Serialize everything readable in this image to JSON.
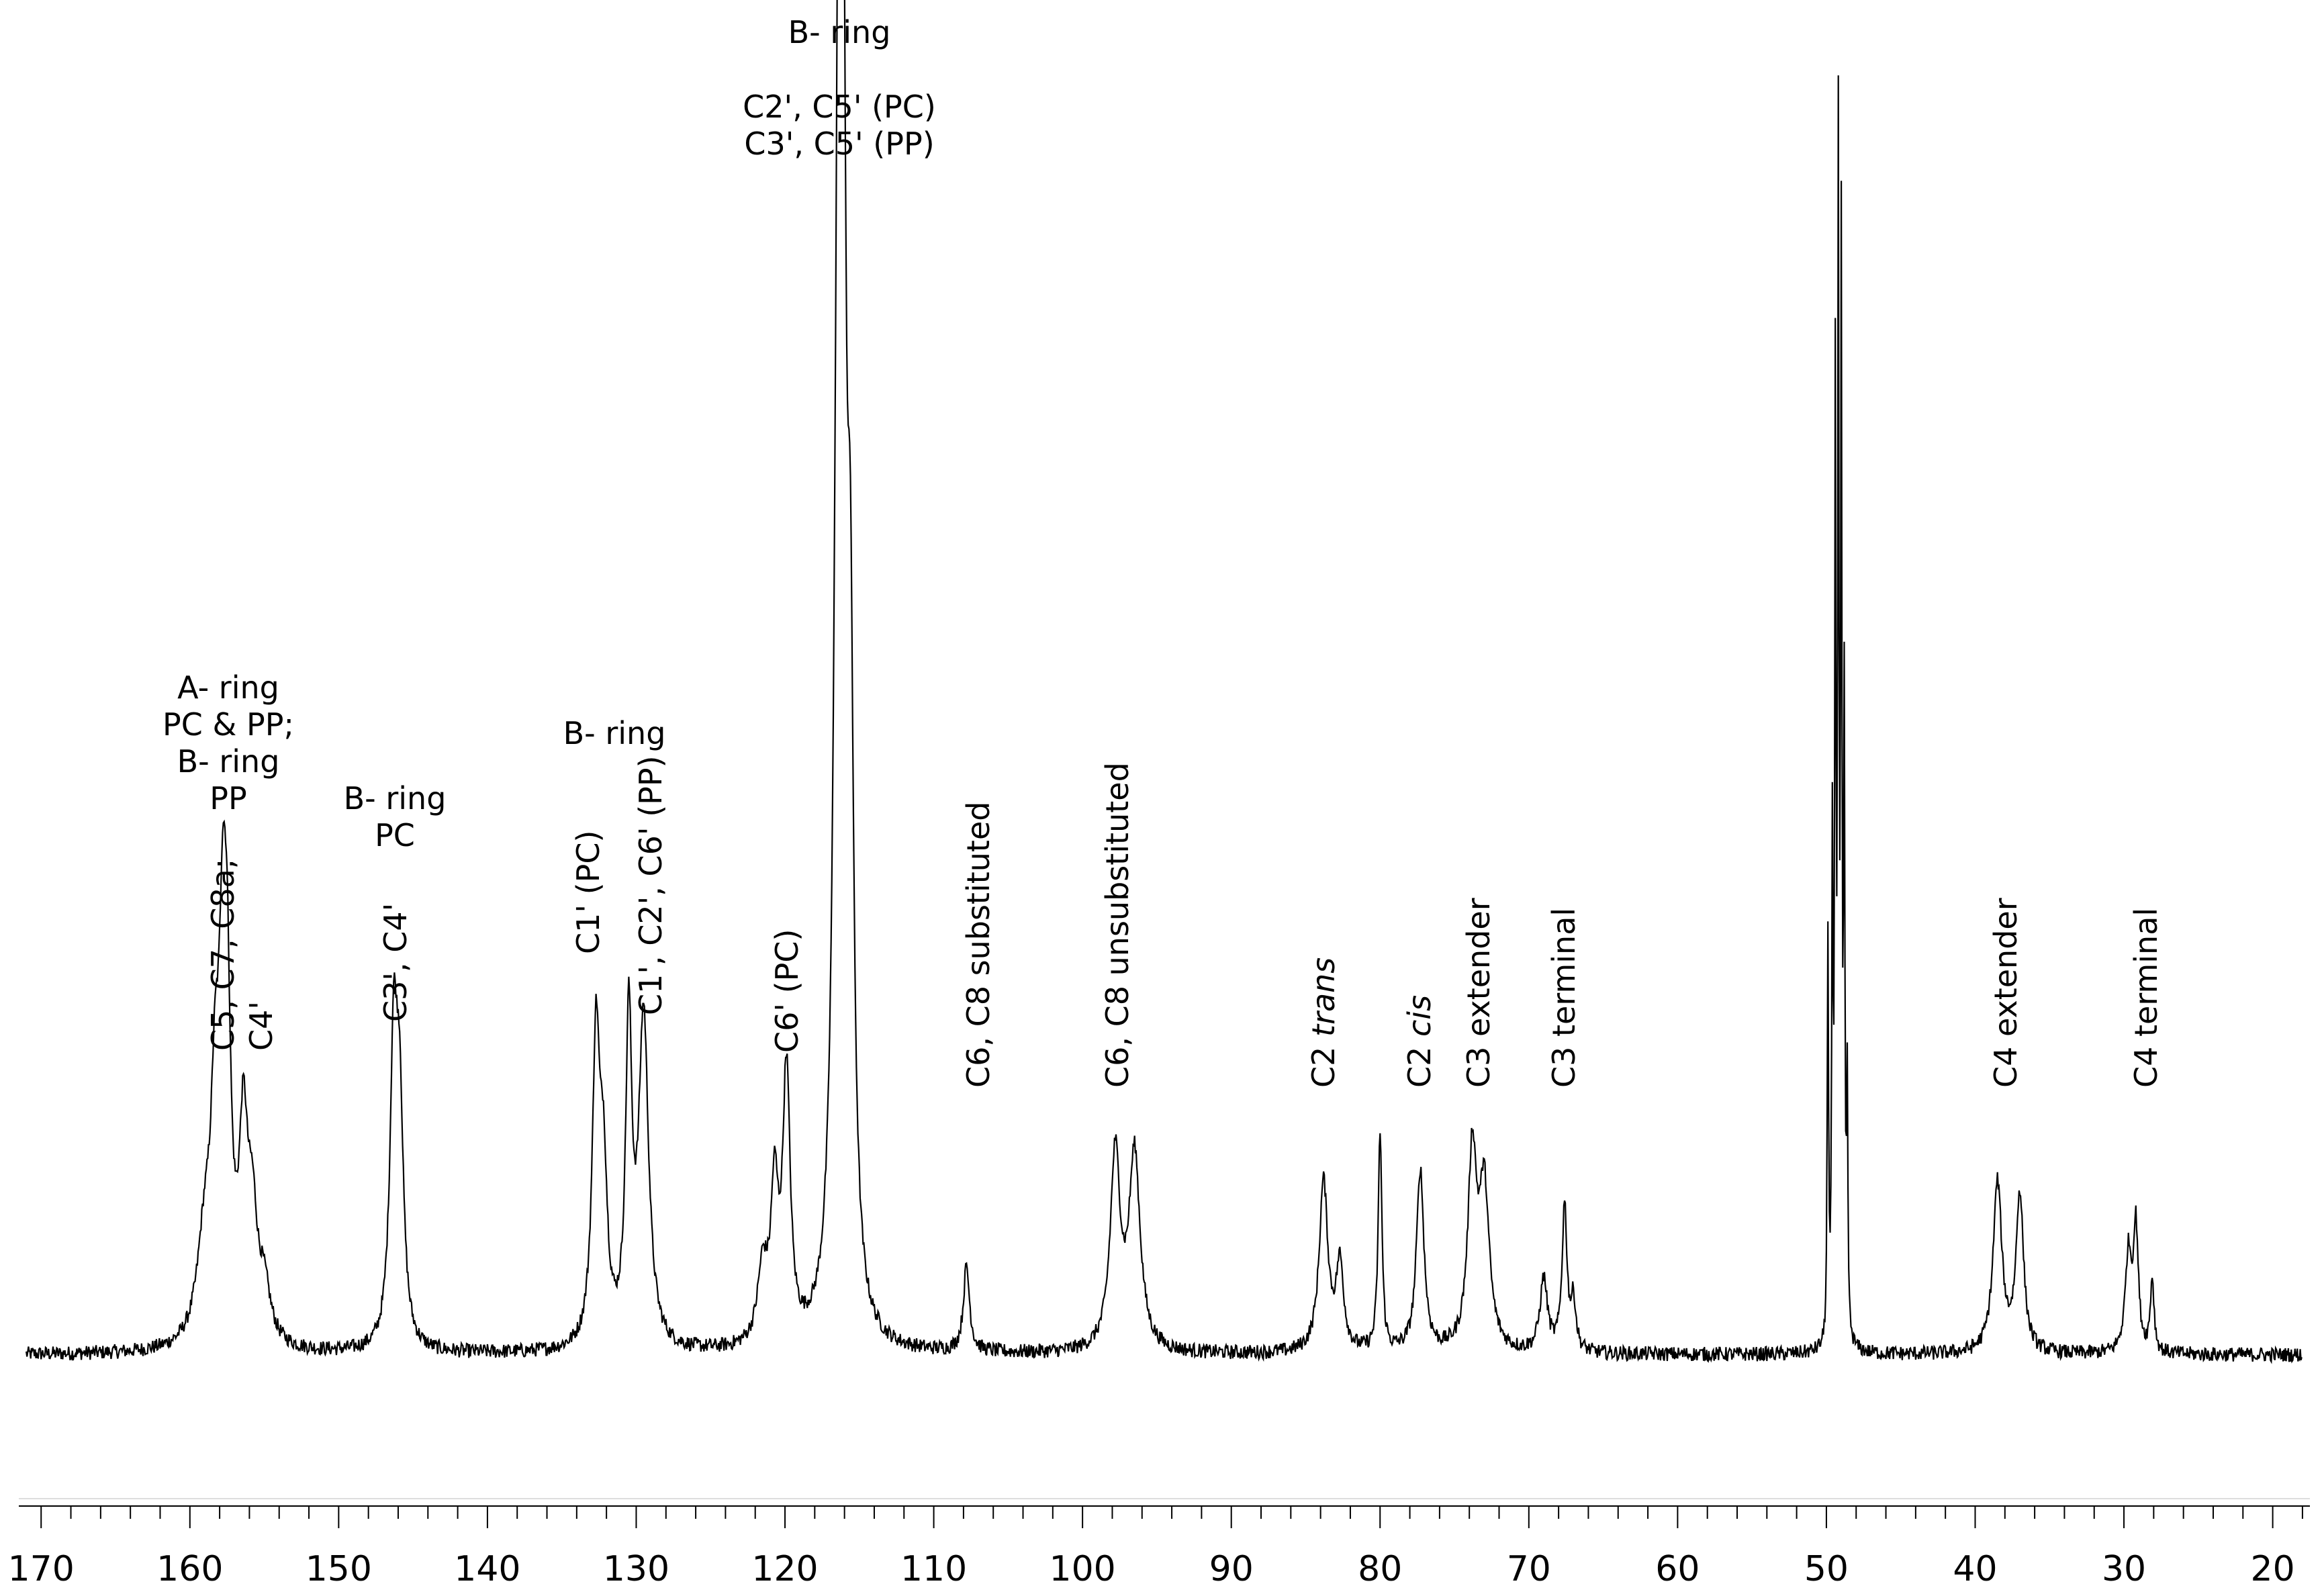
{
  "chart_data": {
    "type": "line",
    "title": "",
    "xlabel": "",
    "ylabel": "",
    "x_reversed": true,
    "xlim": [
      171.5,
      17.5
    ],
    "ylim": [
      -0.05,
      1.0
    ],
    "grid": false,
    "x_ticks": [
      170,
      160,
      150,
      140,
      130,
      120,
      110,
      100,
      90,
      80,
      70,
      60,
      50,
      40,
      30,
      20
    ],
    "peaks": [
      {
        "ppm": 159.0,
        "intensity": 0.08,
        "width": 0.6
      },
      {
        "ppm": 158.3,
        "intensity": 0.16,
        "width": 0.35
      },
      {
        "ppm": 157.8,
        "intensity": 0.24,
        "width": 0.3
      },
      {
        "ppm": 157.5,
        "intensity": 0.22,
        "width": 0.3
      },
      {
        "ppm": 156.4,
        "intensity": 0.16,
        "width": 0.35
      },
      {
        "ppm": 155.8,
        "intensity": 0.09,
        "width": 0.4
      },
      {
        "ppm": 155.0,
        "intensity": 0.04,
        "width": 0.5
      },
      {
        "ppm": 146.3,
        "intensity": 0.24,
        "width": 0.3
      },
      {
        "ppm": 145.9,
        "intensity": 0.18,
        "width": 0.3
      },
      {
        "ppm": 132.7,
        "intensity": 0.25,
        "width": 0.3
      },
      {
        "ppm": 132.2,
        "intensity": 0.13,
        "width": 0.3
      },
      {
        "ppm": 130.5,
        "intensity": 0.26,
        "width": 0.25
      },
      {
        "ppm": 129.5,
        "intensity": 0.27,
        "width": 0.4
      },
      {
        "ppm": 121.5,
        "intensity": 0.06,
        "width": 0.4
      },
      {
        "ppm": 120.7,
        "intensity": 0.12,
        "width": 0.3
      },
      {
        "ppm": 119.9,
        "intensity": 0.22,
        "width": 0.3
      },
      {
        "ppm": 116.4,
        "intensity": 0.95,
        "width": 0.3
      },
      {
        "ppm": 116.1,
        "intensity": 0.78,
        "width": 0.25
      },
      {
        "ppm": 115.6,
        "intensity": 0.45,
        "width": 0.25
      },
      {
        "ppm": 107.8,
        "intensity": 0.07,
        "width": 0.25
      },
      {
        "ppm": 97.8,
        "intensity": 0.16,
        "width": 0.4
      },
      {
        "ppm": 96.5,
        "intensity": 0.16,
        "width": 0.45
      },
      {
        "ppm": 83.8,
        "intensity": 0.14,
        "width": 0.35
      },
      {
        "ppm": 82.7,
        "intensity": 0.07,
        "width": 0.3
      },
      {
        "ppm": 80.0,
        "intensity": 0.18,
        "width": 0.15
      },
      {
        "ppm": 77.3,
        "intensity": 0.15,
        "width": 0.3
      },
      {
        "ppm": 73.8,
        "intensity": 0.16,
        "width": 0.35
      },
      {
        "ppm": 73.0,
        "intensity": 0.13,
        "width": 0.4
      },
      {
        "ppm": 69.0,
        "intensity": 0.06,
        "width": 0.3
      },
      {
        "ppm": 67.6,
        "intensity": 0.12,
        "width": 0.2
      },
      {
        "ppm": 67.0,
        "intensity": 0.04,
        "width": 0.2
      },
      {
        "ppm": 49.9,
        "intensity": 0.33,
        "width": 0.05
      },
      {
        "ppm": 49.6,
        "intensity": 0.39,
        "width": 0.05
      },
      {
        "ppm": 49.4,
        "intensity": 0.75,
        "width": 0.05
      },
      {
        "ppm": 49.2,
        "intensity": 0.94,
        "width": 0.05
      },
      {
        "ppm": 49.0,
        "intensity": 0.86,
        "width": 0.05
      },
      {
        "ppm": 48.8,
        "intensity": 0.5,
        "width": 0.05
      },
      {
        "ppm": 48.6,
        "intensity": 0.2,
        "width": 0.05
      },
      {
        "ppm": 38.5,
        "intensity": 0.14,
        "width": 0.35
      },
      {
        "ppm": 37.0,
        "intensity": 0.13,
        "width": 0.3
      },
      {
        "ppm": 29.7,
        "intensity": 0.08,
        "width": 0.25
      },
      {
        "ppm": 29.2,
        "intensity": 0.1,
        "width": 0.2
      },
      {
        "ppm": 28.1,
        "intensity": 0.06,
        "width": 0.15
      }
    ],
    "annotations": [
      {
        "lines": [
          "A- ring",
          "PC & PP;",
          "B- ring",
          "PP"
        ],
        "orientation": "horizontal"
      },
      {
        "lines": [
          "B- ring",
          "PC"
        ],
        "orientation": "horizontal"
      },
      {
        "lines": [
          "B- ring"
        ],
        "orientation": "horizontal"
      },
      {
        "lines": [
          "B- ring"
        ],
        "orientation": "horizontal"
      },
      {
        "lines": [
          "C2', C5' (PC)",
          "C3', C5' (PP)"
        ],
        "orientation": "horizontal"
      },
      {
        "lines": [
          "C5, C7, C8a;",
          "C4'"
        ],
        "orientation": "vertical"
      },
      {
        "lines": [
          "C3', C4'"
        ],
        "orientation": "vertical"
      },
      {
        "lines": [
          "C1' (PC)"
        ],
        "orientation": "vertical"
      },
      {
        "lines": [
          "C1', C2', C6' (PP)"
        ],
        "orientation": "vertical"
      },
      {
        "lines": [
          "C6' (PC)"
        ],
        "orientation": "vertical"
      },
      {
        "lines": [
          "C6, C8 substituted"
        ],
        "orientation": "vertical"
      },
      {
        "lines": [
          "C6, C8  unsubstituted"
        ],
        "orientation": "vertical"
      },
      {
        "lines": [
          "C2 ",
          "trans"
        ],
        "orientation": "vertical",
        "italic_part": 1
      },
      {
        "lines": [
          "C2 ",
          "cis"
        ],
        "orientation": "vertical",
        "italic_part": 1
      },
      {
        "lines": [
          "C3 extender"
        ],
        "orientation": "vertical"
      },
      {
        "lines": [
          "C3 terminal"
        ],
        "orientation": "vertical"
      },
      {
        "lines": [
          "C4 extender"
        ],
        "orientation": "vertical"
      },
      {
        "lines": [
          "C4 terminal"
        ],
        "orientation": "vertical"
      }
    ]
  }
}
